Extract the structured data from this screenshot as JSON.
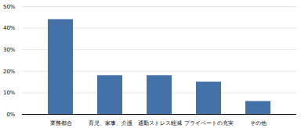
{
  "chart_data": {
    "type": "bar",
    "categories": [
      "業務都合",
      "育児、家事、介護",
      "通勤ストレス軽減",
      "プライベートの充実",
      "その他"
    ],
    "values": [
      44,
      18,
      18,
      15,
      6
    ],
    "color": "#4472a8",
    "ylim": [
      0,
      50
    ],
    "yticks": [
      {
        "value": 0,
        "label": "0%"
      },
      {
        "value": 10,
        "label": "10%"
      },
      {
        "value": 20,
        "label": "20%"
      },
      {
        "value": 30,
        "label": "30%"
      },
      {
        "value": 40,
        "label": "40%"
      },
      {
        "value": 50,
        "label": "50%"
      }
    ],
    "grid": true
  }
}
